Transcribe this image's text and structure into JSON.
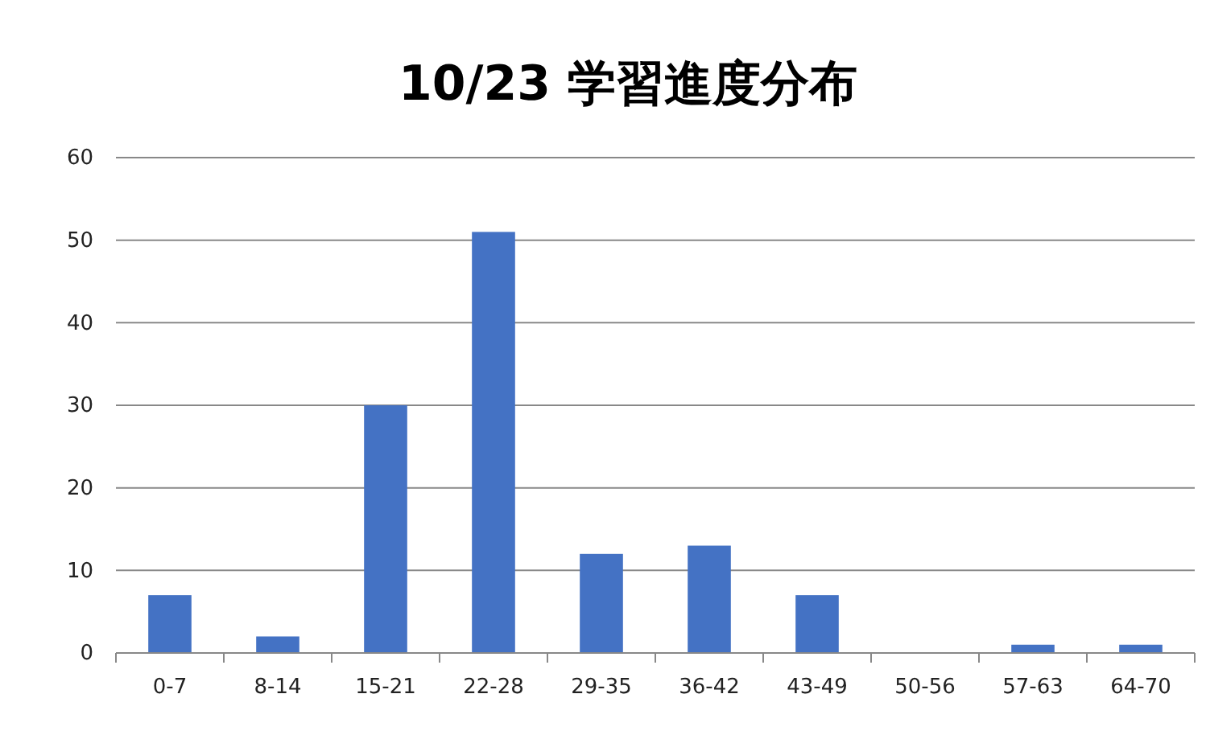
{
  "chart_data": {
    "type": "bar",
    "title": "10/23  学習進度分布",
    "categories": [
      "0-7",
      "8-14",
      "15-21",
      "22-28",
      "29-35",
      "36-42",
      "43-49",
      "50-56",
      "57-63",
      "64-70"
    ],
    "values": [
      7,
      2,
      30,
      51,
      12,
      13,
      7,
      0,
      1,
      1
    ],
    "color": "#4472c4",
    "ylim": [
      0,
      60
    ],
    "yticks": [
      0,
      10,
      20,
      30,
      40,
      50,
      60
    ],
    "grid": "y"
  }
}
